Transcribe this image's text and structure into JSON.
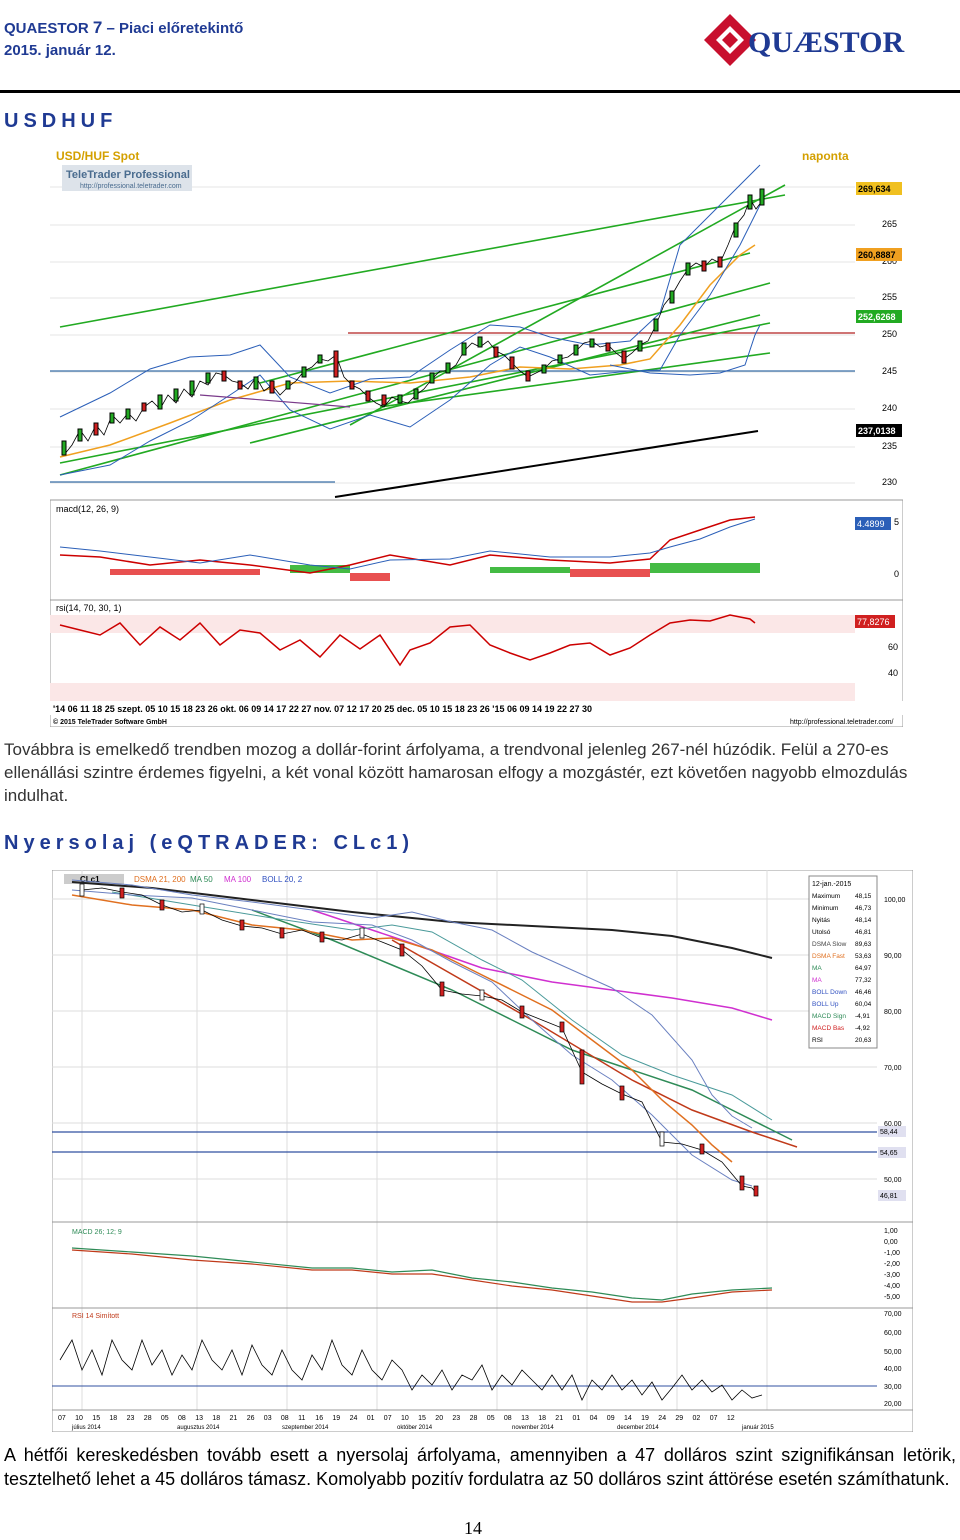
{
  "header": {
    "title_prefix": "QUAESTOR",
    "title_num": "7",
    "title_suffix": "– Piaci előretekintő",
    "date": "2015. január 12.",
    "logo_text": "QUÆSTOR"
  },
  "section1": {
    "heading": "USDHUF",
    "chart": {
      "title": "USD/HUF Spot",
      "period": "naponta",
      "brand": "TeleTrader Professional",
      "brand_url": "http://professional.teletrader.com",
      "price_axis": [
        "270",
        "265",
        "260",
        "255",
        "250",
        "245",
        "240",
        "235",
        "230"
      ],
      "price_tags": [
        "269,634",
        "260,8887",
        "252,6268",
        "237,0138"
      ],
      "macd_label": "macd(12, 26, 9)",
      "macd_tag": "4.4899",
      "macd_axis": [
        "5",
        "0"
      ],
      "rsi_label": "rsi(14, 70, 30, 1)",
      "rsi_tag": "77,8276",
      "rsi_axis": [
        "60",
        "40"
      ],
      "date_axis": "'14  06  11  18  25  szept. 05  10  15  18  23  26  okt. 06  09  14  17  22  27   nov.  07  12  17  20  25   dec. 05  10  15  18  23  26   '15  06  09  14  19  22  27  30",
      "copyright": "© 2015 TeleTrader Software GmbH",
      "footer_url": "http://professional.teletrader.com/"
    },
    "text": "Továbbra is emelkedő trendben mozog a dollár-forint árfolyama, a trendvonal jelenleg 267-nél húzódik. Felül a 270-es ellenállási szintre érdemes figyelni, a két vonal között hamarosan elfogy a mozgástér, ezt követően nagyobb elmozdulás indulhat."
  },
  "section2": {
    "heading": "Nyersolaj (eQTRADER: CLc1)",
    "chart": {
      "legend": [
        "CLc1",
        "DSMA 21, 200",
        "MA 50",
        "MA 100",
        "BOLL 20, 2"
      ],
      "info_date": "12-jan.-2015",
      "info_rows": [
        {
          "k": "Maximum",
          "v": "48,15"
        },
        {
          "k": "Minimum",
          "v": "46,73"
        },
        {
          "k": "Nyitás",
          "v": "48,14"
        },
        {
          "k": "Utolsó",
          "v": "46,81"
        },
        {
          "k": "DSMA Slow",
          "v": "89,63"
        },
        {
          "k": "DSMA Fast",
          "v": "53,63"
        },
        {
          "k": "MA",
          "v": "64,97"
        },
        {
          "k": "MA",
          "v": "77,32"
        },
        {
          "k": "BOLL Down",
          "v": "46,46"
        },
        {
          "k": "BOLL Up",
          "v": "60,04"
        },
        {
          "k": "MACD Sign",
          "v": "-4,91"
        },
        {
          "k": "MACD Bas",
          "v": "-4,92"
        },
        {
          "k": "RSI",
          "v": "20,63"
        }
      ],
      "price_axis": [
        "100,00",
        "90,00",
        "80,00",
        "70,00",
        "60,00",
        "50,00"
      ],
      "price_tags": [
        "58,44",
        "54,65",
        "46,81"
      ],
      "macd_label": "MACD 26; 12; 9",
      "macd_axis": [
        "1,00",
        "0,00",
        "-1,00",
        "-2,00",
        "-3,00",
        "-4,00",
        "-5,00"
      ],
      "rsi_label": "RSI 14 Simított",
      "rsi_axis": [
        "70,00",
        "60,00",
        "50,00",
        "40,00",
        "30,00",
        "20,00"
      ],
      "dates": [
        "07",
        "10",
        "15",
        "18",
        "23",
        "28",
        "05",
        "08",
        "13",
        "18",
        "21",
        "26",
        "03",
        "08",
        "11",
        "16",
        "19",
        "24",
        "01",
        "07",
        "10",
        "15",
        "20",
        "23",
        "28",
        "05",
        "08",
        "13",
        "18",
        "21",
        "01",
        "04",
        "09",
        "14",
        "19",
        "24",
        "29",
        "02",
        "07",
        "12"
      ],
      "months": [
        "július 2014",
        "augusztus 2014",
        "szeptember 2014",
        "október 2014",
        "november 2014",
        "december 2014",
        "január 2015"
      ]
    },
    "text": "A hétfői kereskedésben tovább esett a nyersolaj árfolyama, amennyiben a 47 dolláros szint szignifikánsan letörik, tesztelhető lehet a 45 dolláros támasz. Komolyabb pozitív fordulatra az 50 dolláros szint áttörése esetén számíthatunk."
  },
  "page_number": "14"
}
